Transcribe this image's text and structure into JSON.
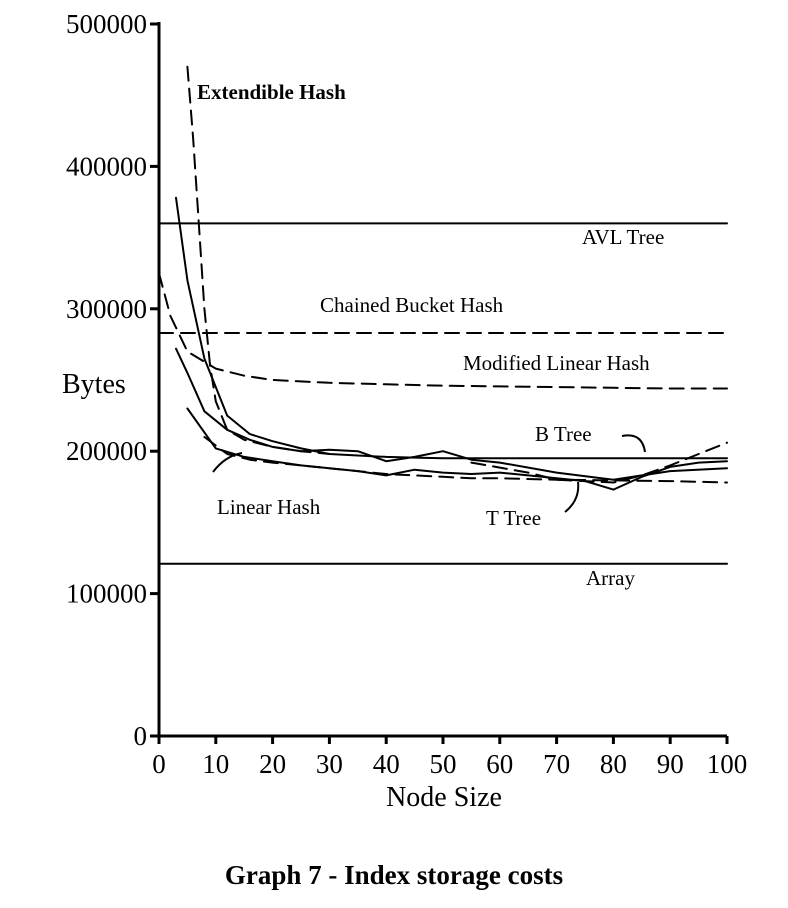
{
  "caption": "Graph 7 - Index storage costs",
  "chart_data": {
    "type": "line",
    "title": "",
    "xlabel": "Node Size",
    "ylabel": "Bytes",
    "xlim": [
      0,
      100
    ],
    "ylim": [
      0,
      500000
    ],
    "xticks": [
      0,
      10,
      20,
      30,
      40,
      50,
      60,
      70,
      80,
      90,
      100
    ],
    "yticks": [
      0,
      100000,
      200000,
      300000,
      400000,
      500000
    ],
    "grid": false,
    "legend": "none (series labelled directly on the plot)",
    "series": [
      {
        "name": "Extendible Hash",
        "style": "dashed",
        "x": [
          5,
          6,
          7,
          8,
          9,
          10,
          12,
          15,
          20,
          25,
          30
        ],
        "y": [
          470000,
          420000,
          360000,
          300000,
          260000,
          235000,
          215000,
          208000,
          203000,
          200000,
          198000
        ]
      },
      {
        "name": "AVL Tree",
        "style": "solid",
        "x": [
          0,
          100
        ],
        "y": [
          360000,
          360000
        ]
      },
      {
        "name": "Chained Bucket Hash",
        "style": "dashed",
        "x": [
          0,
          100
        ],
        "y": [
          283000,
          283000
        ]
      },
      {
        "name": "Modified Linear Hash",
        "style": "dashed",
        "x": [
          0,
          2,
          5,
          10,
          15,
          20,
          30,
          40,
          50,
          60,
          70,
          80,
          90,
          100
        ],
        "y": [
          325000,
          295000,
          270000,
          258000,
          253000,
          250000,
          248000,
          247000,
          246000,
          245500,
          245000,
          244500,
          244000,
          244000
        ]
      },
      {
        "name": "B Tree",
        "style": "solid",
        "x": [
          3,
          5,
          8,
          12,
          16,
          20,
          25,
          30,
          35,
          40,
          45,
          50,
          55,
          60,
          70,
          80,
          90,
          100
        ],
        "y": [
          378000,
          320000,
          265000,
          225000,
          212000,
          207000,
          202000,
          198000,
          197000,
          196000,
          195500,
          195000,
          195000,
          195000,
          195000,
          195000,
          195000,
          195000
        ]
      },
      {
        "name": "Linear Hash",
        "style": "solid",
        "x": [
          3,
          5,
          8,
          12,
          16,
          20,
          25,
          30,
          35,
          40,
          45,
          50,
          55,
          60,
          70,
          80,
          90,
          100
        ],
        "y": [
          272000,
          255000,
          228000,
          215000,
          208000,
          203000,
          200000,
          201000,
          200000,
          193000,
          196000,
          200000,
          194000,
          192000,
          185000,
          180000,
          186000,
          188000
        ]
      },
      {
        "name": "T Tree",
        "style": "solid",
        "x": [
          5,
          10,
          15,
          20,
          25,
          30,
          35,
          40,
          45,
          50,
          55,
          60,
          65,
          70,
          75,
          80,
          85,
          90,
          95,
          100
        ],
        "y": [
          230000,
          202000,
          196000,
          193000,
          190000,
          188000,
          186000,
          183000,
          187000,
          185000,
          184000,
          185000,
          183000,
          181000,
          179000,
          173000,
          182000,
          189000,
          192000,
          193000
        ]
      },
      {
        "name": "",
        "style": "dashed",
        "x": [
          8,
          12,
          16,
          20,
          25,
          30,
          35,
          40,
          45,
          50,
          55,
          60,
          70,
          80,
          90,
          100
        ],
        "y": [
          210000,
          198000,
          194000,
          192000,
          190000,
          188000,
          186000,
          184000,
          183000,
          182000,
          181000,
          181000,
          180000,
          179500,
          179000,
          178000
        ]
      },
      {
        "name": "",
        "style": "dashed",
        "x": [
          55,
          65,
          70,
          80,
          85,
          90,
          95,
          100
        ],
        "y": [
          192000,
          185000,
          180000,
          178000,
          183000,
          190000,
          198000,
          206000
        ]
      },
      {
        "name": "Array",
        "style": "solid",
        "x": [
          0,
          100
        ],
        "y": [
          121000,
          121000
        ]
      }
    ]
  }
}
